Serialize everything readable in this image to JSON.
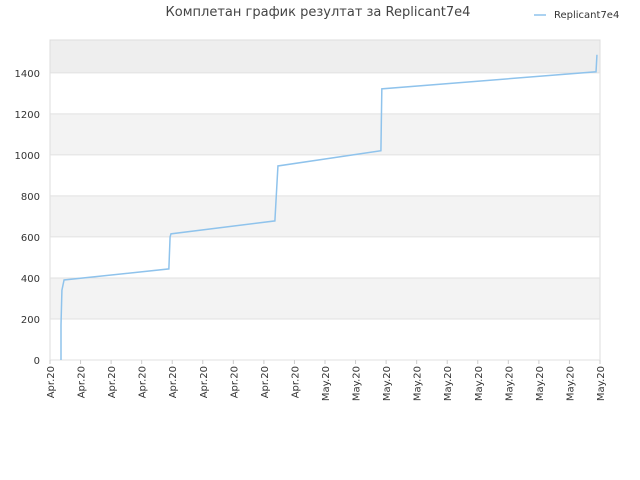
{
  "chart_data": {
    "type": "line",
    "title": "Комплетан график резултат за Replicant7e4",
    "x": [
      0.36,
      0.36,
      0.39,
      0.46,
      3.89,
      3.93,
      3.96,
      7.36,
      7.46,
      10.83,
      10.86,
      17.87,
      17.9
    ],
    "series": [
      {
        "name": "Replicant7e4",
        "color": "#8fc3ec",
        "values": [
          0,
          170,
          340,
          390,
          444,
          600,
          615,
          678,
          946,
          1020,
          1322,
          1405,
          1488
        ]
      }
    ],
    "xlim": [
      0,
      18
    ],
    "xticks": [
      {
        "value": 0,
        "label": "Apr.20"
      },
      {
        "value": 1,
        "label": "Apr.20"
      },
      {
        "value": 2,
        "label": "Apr.20"
      },
      {
        "value": 3,
        "label": "Apr.20"
      },
      {
        "value": 4,
        "label": "Apr.20"
      },
      {
        "value": 5,
        "label": "Apr.20"
      },
      {
        "value": 6,
        "label": "Apr.20"
      },
      {
        "value": 7,
        "label": "Apr.20"
      },
      {
        "value": 8,
        "label": "Apr.20"
      },
      {
        "value": 9,
        "label": "May.20"
      },
      {
        "value": 10,
        "label": "May.20"
      },
      {
        "value": 11,
        "label": "May.20"
      },
      {
        "value": 12,
        "label": "May.20"
      },
      {
        "value": 13,
        "label": "May.20"
      },
      {
        "value": 14,
        "label": "May.20"
      },
      {
        "value": 15,
        "label": "May.20"
      },
      {
        "value": 16,
        "label": "May.20"
      },
      {
        "value": 17,
        "label": "May.20"
      },
      {
        "value": 18,
        "label": "May.20"
      }
    ],
    "ylim": [
      0,
      1560
    ],
    "yticks": [
      0,
      200,
      400,
      600,
      800,
      1000,
      1200,
      1400
    ],
    "grid": true,
    "legend": "top-right"
  }
}
